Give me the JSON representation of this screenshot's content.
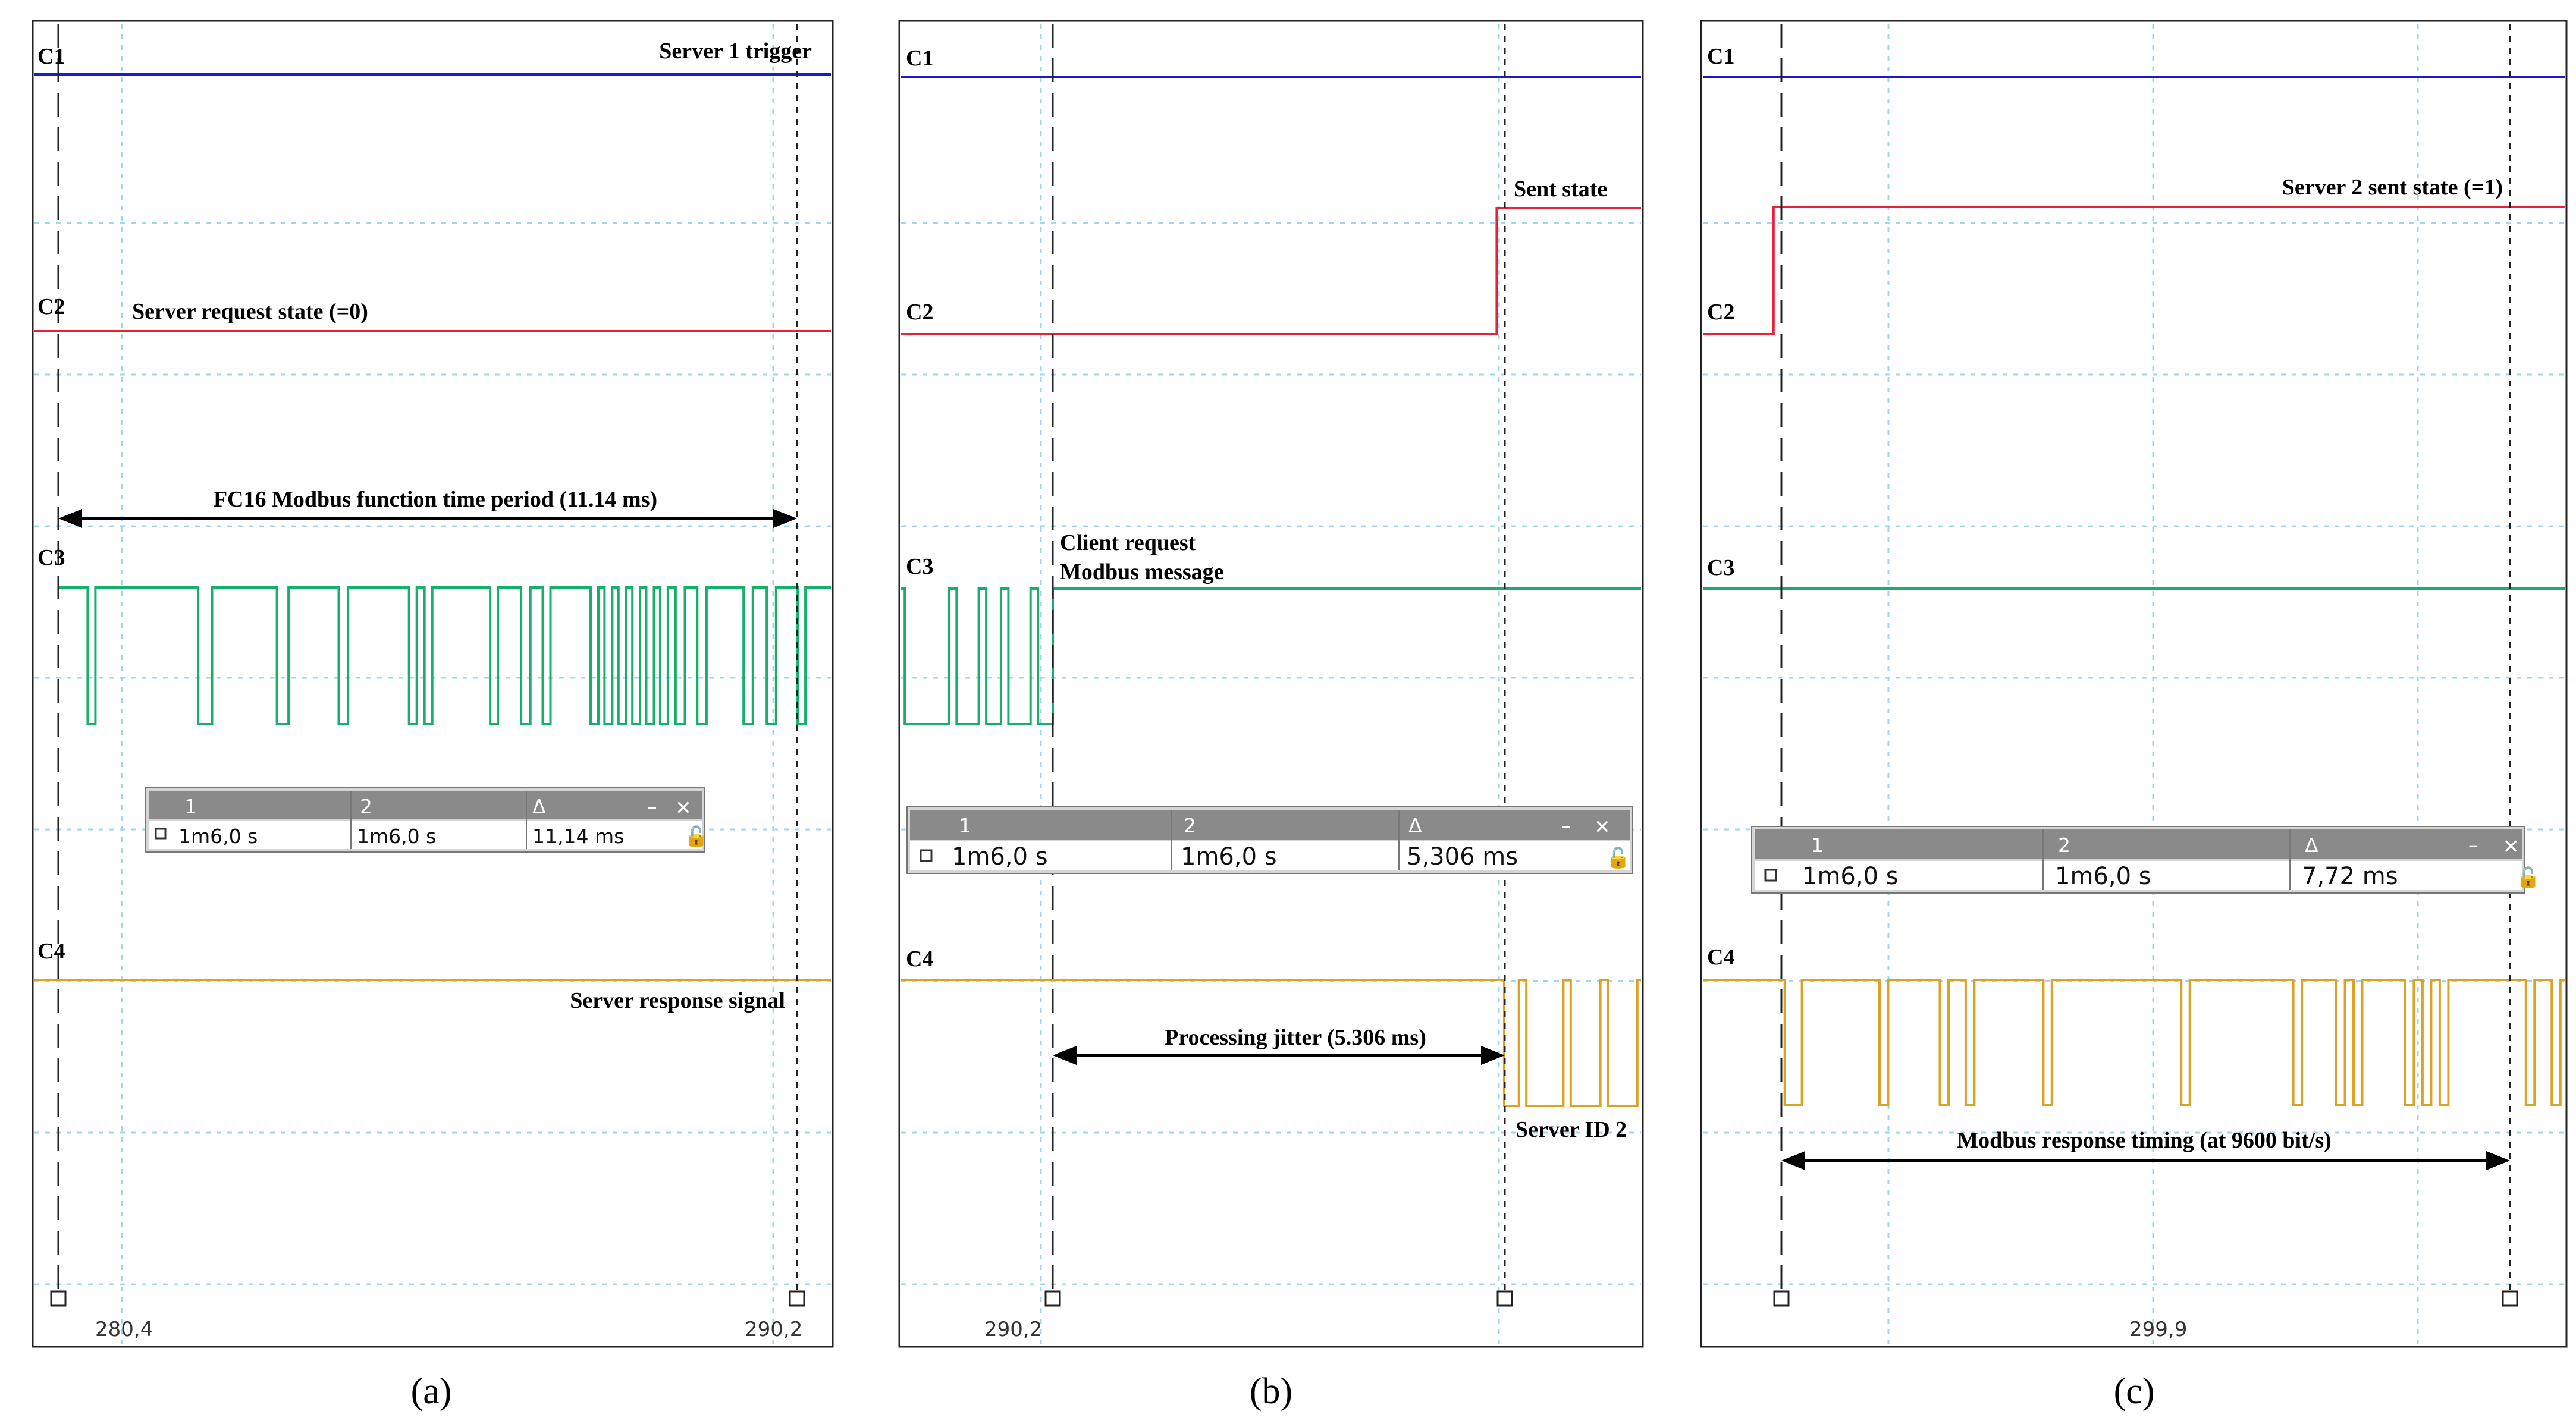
{
  "figure": {
    "panel_tags": [
      "(a)",
      "(b)",
      "(c)"
    ]
  },
  "colors": {
    "C1": "#1a1acd",
    "C2": "#e8203a",
    "C3": "#17b06a",
    "C4": "#dca225",
    "grid": "#9fd8ec"
  },
  "chart_data": [
    {
      "type": "line",
      "panel": "a",
      "title": "",
      "channels": [
        "C1",
        "C2",
        "C3",
        "C4"
      ],
      "annotations": {
        "c1": "Server 1 trigger",
        "c2": "Server request state (=0)",
        "period": "FC16 Modbus function time period (11.14 ms)",
        "c4": "Server response  signal"
      },
      "x_ticks": [
        "280,4",
        "290,2"
      ],
      "measurement": {
        "h1": "1",
        "h2": "2",
        "hd": "Δ",
        "v1": "1m6,0 s",
        "v2": "1m6,0 s",
        "delta": "11,14 ms"
      },
      "series": [
        {
          "name": "C1",
          "level": 1
        },
        {
          "name": "C2",
          "level": 0
        },
        {
          "name": "C3",
          "pulse_edges": [
            0.038,
            0.048,
            0.181,
            0.199,
            0.283,
            0.298,
            0.363,
            0.375,
            0.454,
            0.464,
            0.474,
            0.484,
            0.559,
            0.569,
            0.599,
            0.611,
            0.627,
            0.637,
            0.689,
            0.699,
            0.707,
            0.717,
            0.725,
            0.735,
            0.743,
            0.753,
            0.761,
            0.771,
            0.779,
            0.789,
            0.799,
            0.811,
            0.827,
            0.839,
            0.887,
            0.899,
            0.917,
            0.929,
            0.957,
            0.967
          ]
        },
        {
          "name": "C4",
          "level": 0
        }
      ]
    },
    {
      "type": "line",
      "panel": "b",
      "title": "",
      "channels": [
        "C1",
        "C2",
        "C3",
        "C4"
      ],
      "annotations": {
        "c2": "Sent state",
        "c3_line1": "Client request",
        "c3_line2": "Modbus message",
        "jitter": "Processing jitter (5.306 ms)",
        "c4": "Server ID 2"
      },
      "x_ticks": [
        "290,2"
      ],
      "measurement": {
        "h1": "1",
        "h2": "2",
        "hd": "Δ",
        "v1": "1m6,0 s",
        "v2": "1m6,0 s",
        "delta": "5,306 ms"
      },
      "series": [
        {
          "name": "C1",
          "level": 1
        },
        {
          "name": "C2",
          "step_to_high_at": 0.805
        },
        {
          "name": "C3",
          "pulse_edges": [
            0.005,
            0.065,
            0.075,
            0.105,
            0.115,
            0.135,
            0.145,
            0.175,
            0.185,
            0.205
          ]
        },
        {
          "name": "C4",
          "pulse_edges": [
            0.815,
            0.835,
            0.845,
            0.895,
            0.905,
            0.945,
            0.955,
            0.995
          ]
        }
      ]
    },
    {
      "type": "line",
      "panel": "c",
      "title": "",
      "channels": [
        "C1",
        "C2",
        "C3",
        "C4"
      ],
      "annotations": {
        "c2": "Server 2 sent state (=1)",
        "timing": "Modbus response timing (at 9600 bit/s)"
      },
      "x_ticks": [
        "299,9"
      ],
      "measurement": {
        "h1": "1",
        "h2": "2",
        "hd": "Δ",
        "v1": "1m6,0 s",
        "v2": "1m6,0 s",
        "delta": "7,72 ms"
      },
      "series": [
        {
          "name": "C1",
          "level": 1
        },
        {
          "name": "C2",
          "step_to_high_at": 0.082
        },
        {
          "name": "C3",
          "level": 0
        },
        {
          "name": "C4",
          "pulse_edges": [
            0.095,
            0.115,
            0.205,
            0.215,
            0.275,
            0.285,
            0.305,
            0.315,
            0.395,
            0.405,
            0.555,
            0.565,
            0.685,
            0.695,
            0.735,
            0.745,
            0.755,
            0.765,
            0.815,
            0.825,
            0.835,
            0.845,
            0.855,
            0.865,
            0.955,
            0.965,
            0.985,
            0.995
          ]
        }
      ]
    }
  ]
}
